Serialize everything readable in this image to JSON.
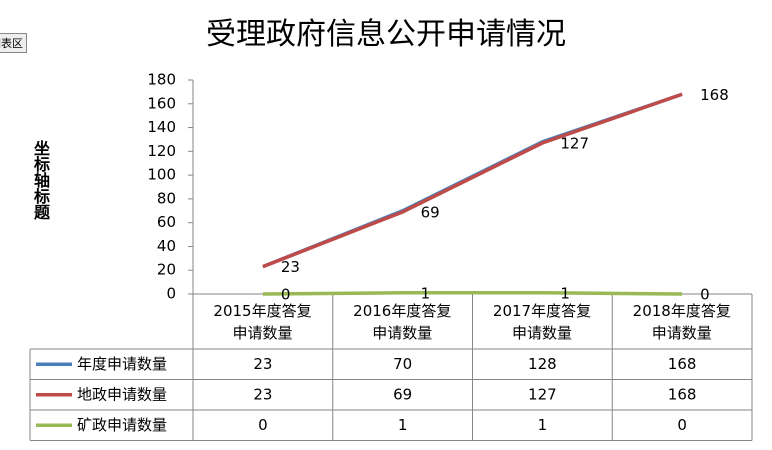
{
  "chart_data": {
    "type": "line",
    "title": "受理政府信息公开申请情况",
    "chart_area_tag": "图表区",
    "y_axis_label": "坐标轴标题",
    "categories": [
      "2015年度答复申请数量",
      "2016年度答复申请数量",
      "2017年度答复申请数量",
      "2018年度答复申请数量"
    ],
    "series": [
      {
        "name": "年度申请数量",
        "color": "#4a7ebb",
        "values": [
          23,
          70,
          128,
          168
        ],
        "data_labels": false
      },
      {
        "name": "地政申请数量",
        "color": "#be4b48",
        "values": [
          23,
          69,
          127,
          168
        ],
        "data_labels": true
      },
      {
        "name": "矿政申请数量",
        "color": "#98b954",
        "values": [
          0,
          1,
          1,
          0
        ],
        "data_labels": true
      }
    ],
    "ylim": [
      0,
      180
    ],
    "yticks": [
      0,
      20,
      40,
      60,
      80,
      100,
      120,
      140,
      160,
      180
    ],
    "grid": false
  }
}
